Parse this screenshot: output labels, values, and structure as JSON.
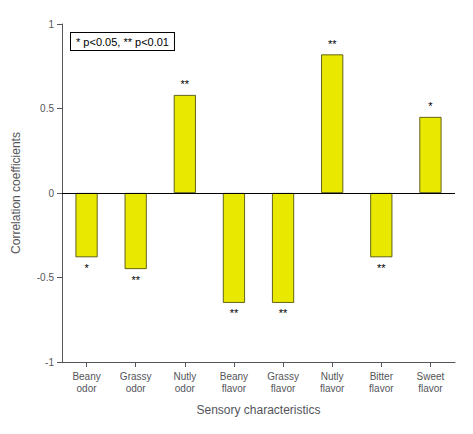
{
  "chart_data": {
    "type": "bar",
    "categories": [
      "Beany\nodor",
      "Grassy\nodor",
      "Nutly\nodor",
      "Beany\nflavor",
      "Grassy\nflavor",
      "Nutly\nflavor",
      "Bitter\nflavor",
      "Sweet\nflavor"
    ],
    "values": [
      -0.38,
      -0.45,
      0.58,
      -0.65,
      -0.65,
      0.82,
      -0.38,
      0.45
    ],
    "significance": [
      "*",
      "**",
      "**",
      "**",
      "**",
      "**",
      "**",
      "*"
    ],
    "color": "#E8E800",
    "ylim": [
      -1,
      1
    ],
    "yticks": [
      -1,
      -0.5,
      0,
      0.5,
      1
    ],
    "ylabel": "Correlation coefficients",
    "xlabel": "Sensory characteristics",
    "annotation": "* p<0.05, ** p<0.01",
    "grid": false
  }
}
